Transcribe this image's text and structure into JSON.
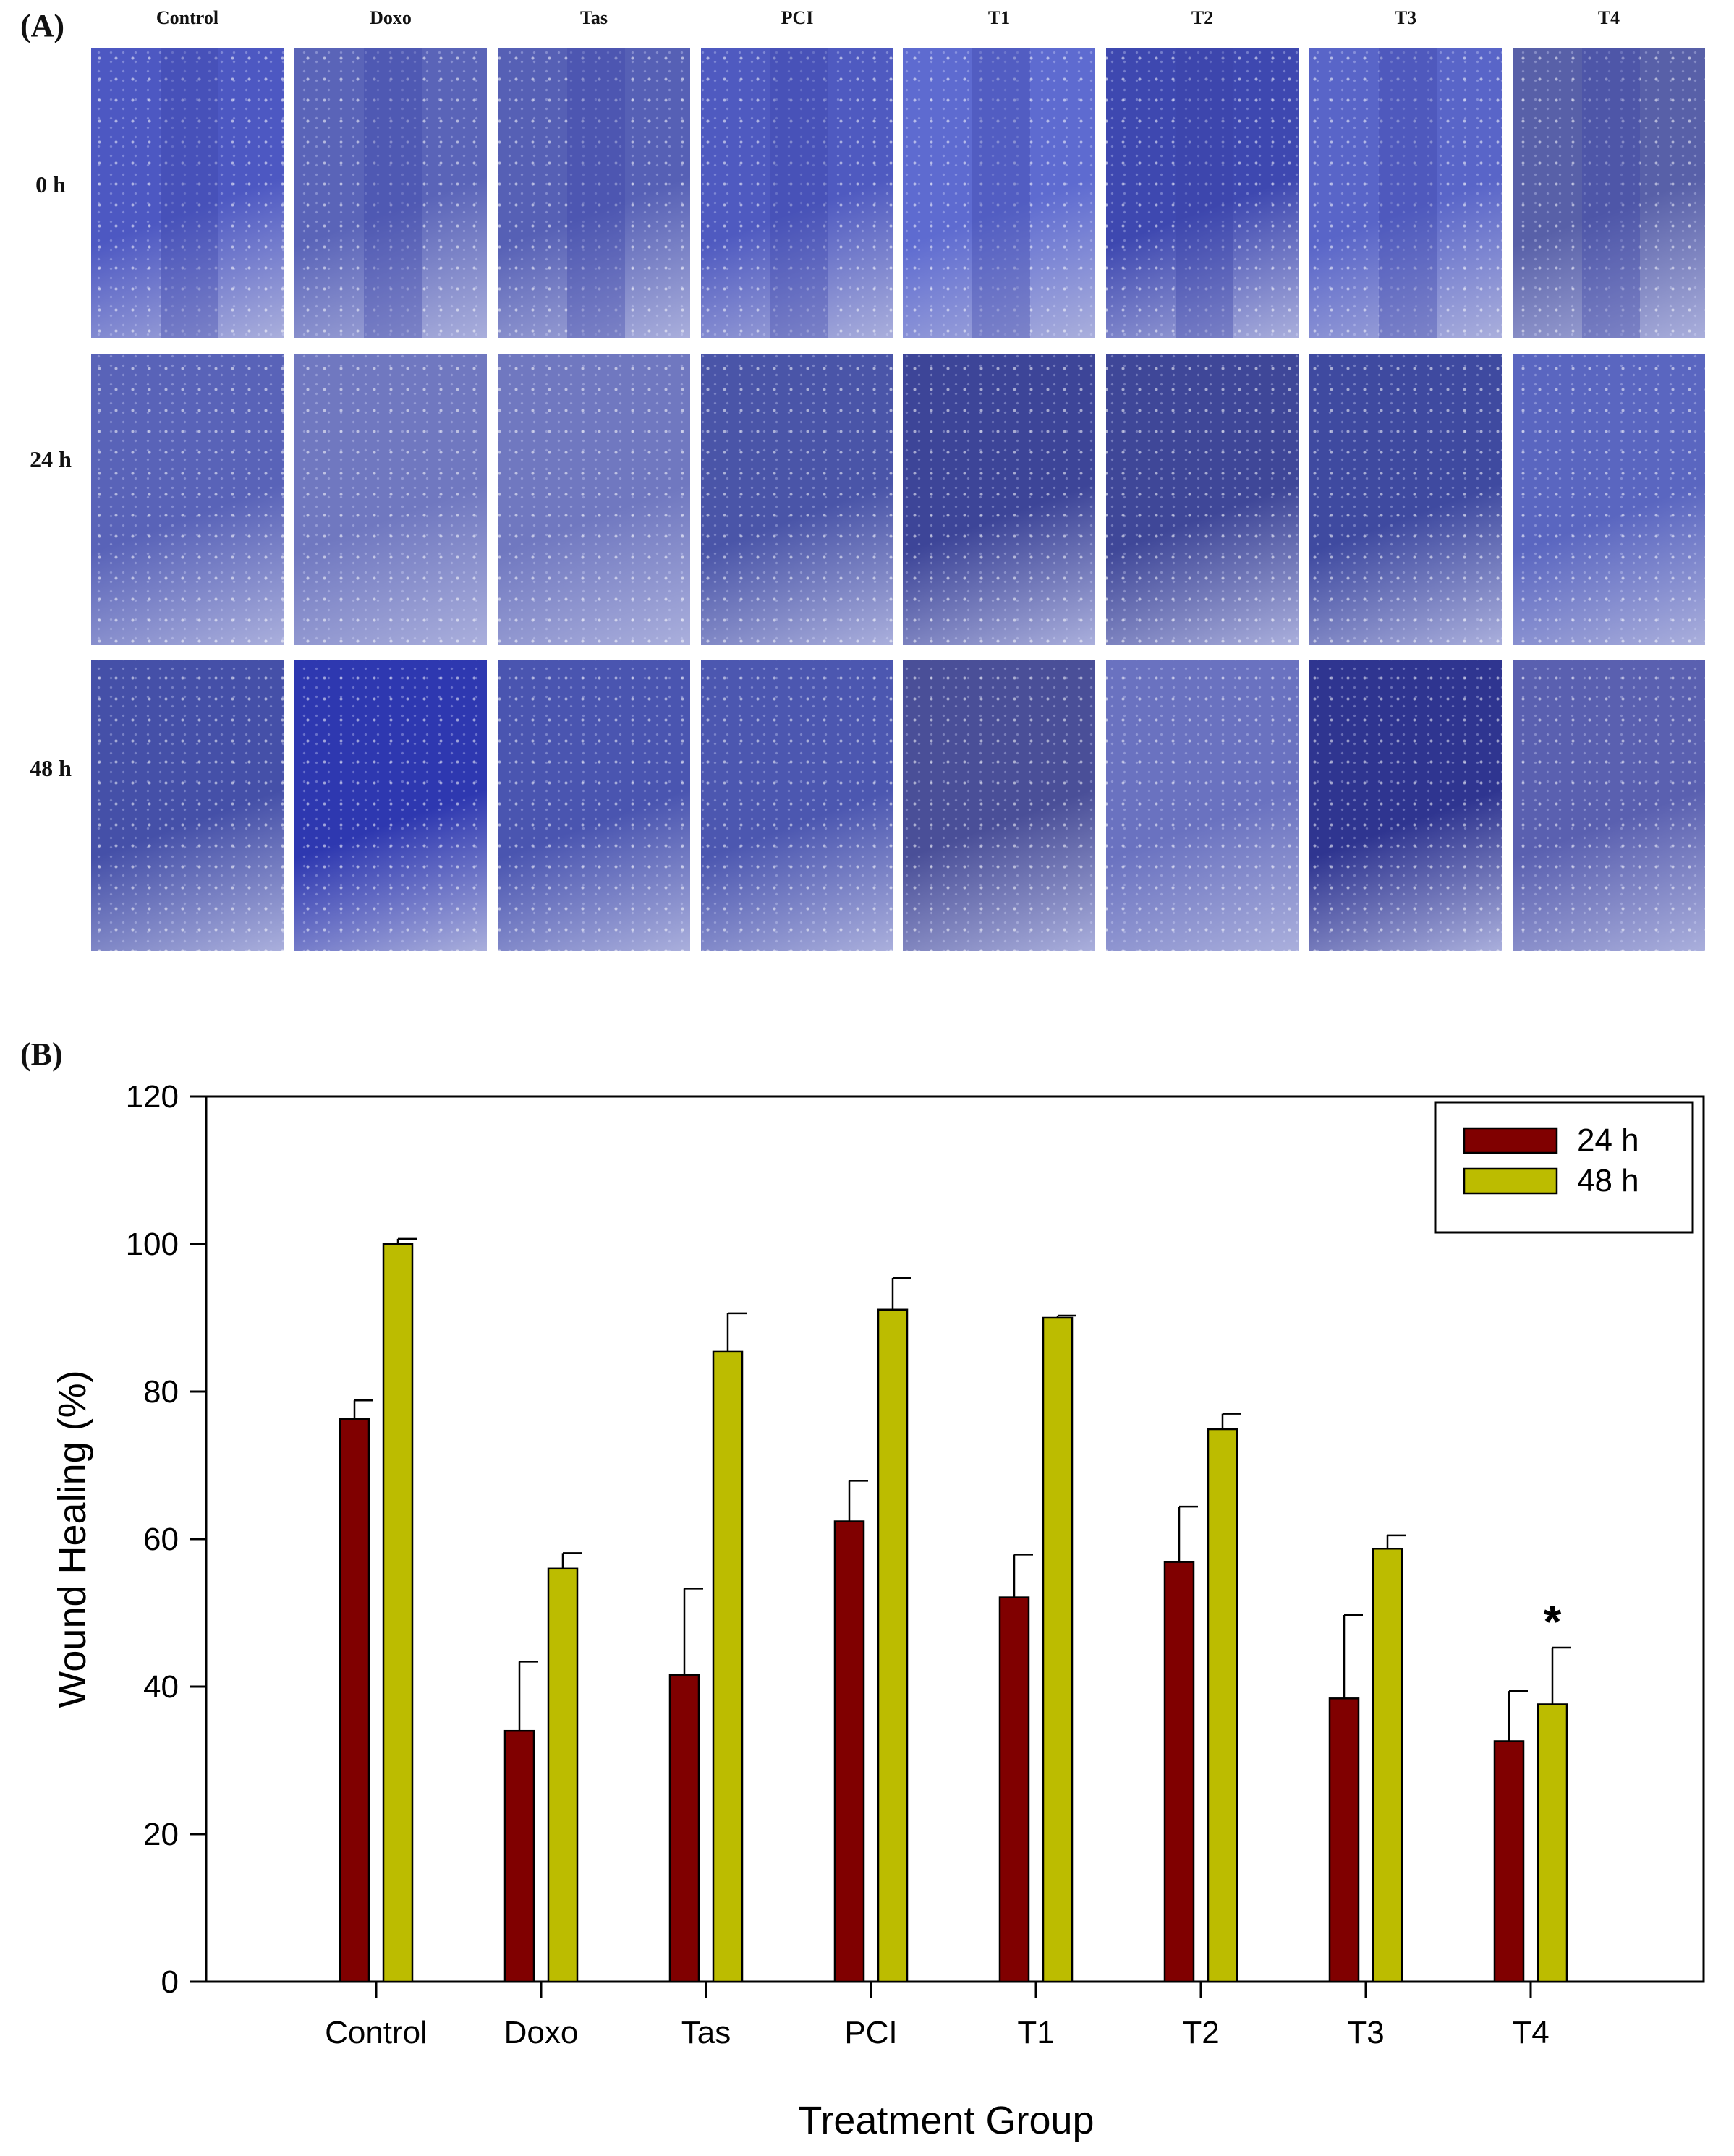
{
  "panel_a": {
    "label": "(A)",
    "columns": [
      "Control",
      "Doxo",
      "Tas",
      "PCI",
      "T1",
      "T2",
      "T3",
      "T4"
    ],
    "rows": [
      "0 h",
      "24 h",
      "48 h"
    ]
  },
  "panel_b": {
    "label": "(B)"
  },
  "colors": {
    "series_24h": "#800000",
    "series_48h": "#bcbc00",
    "micro_base": "#4a55b8"
  },
  "chart_data": {
    "type": "bar",
    "title": "",
    "xlabel": "Treatment Group",
    "ylabel": "Wound Healing (%)",
    "ylim": [
      0,
      120
    ],
    "yticks": [
      0,
      20,
      40,
      60,
      80,
      100,
      120
    ],
    "categories": [
      "Control",
      "Doxo",
      "Tas",
      "PCI",
      "T1",
      "T2",
      "T3",
      "T4"
    ],
    "series": [
      {
        "name": "24 h",
        "color": "#800000",
        "values": [
          76.3,
          34.0,
          41.6,
          62.4,
          52.1,
          56.9,
          38.4,
          32.6
        ],
        "errors": [
          2.5,
          9.4,
          11.7,
          5.5,
          5.8,
          7.5,
          11.3,
          6.8
        ]
      },
      {
        "name": "48 h",
        "color": "#bcbc00",
        "values": [
          100.0,
          56.0,
          85.4,
          91.1,
          90.0,
          74.9,
          58.7,
          37.6
        ],
        "errors": [
          0.7,
          2.1,
          5.2,
          4.3,
          0.3,
          2.1,
          1.8,
          7.7
        ]
      }
    ],
    "legend_position": "top-right",
    "annotations": [
      {
        "category": "T4",
        "series": "48 h",
        "text": "*"
      }
    ]
  }
}
